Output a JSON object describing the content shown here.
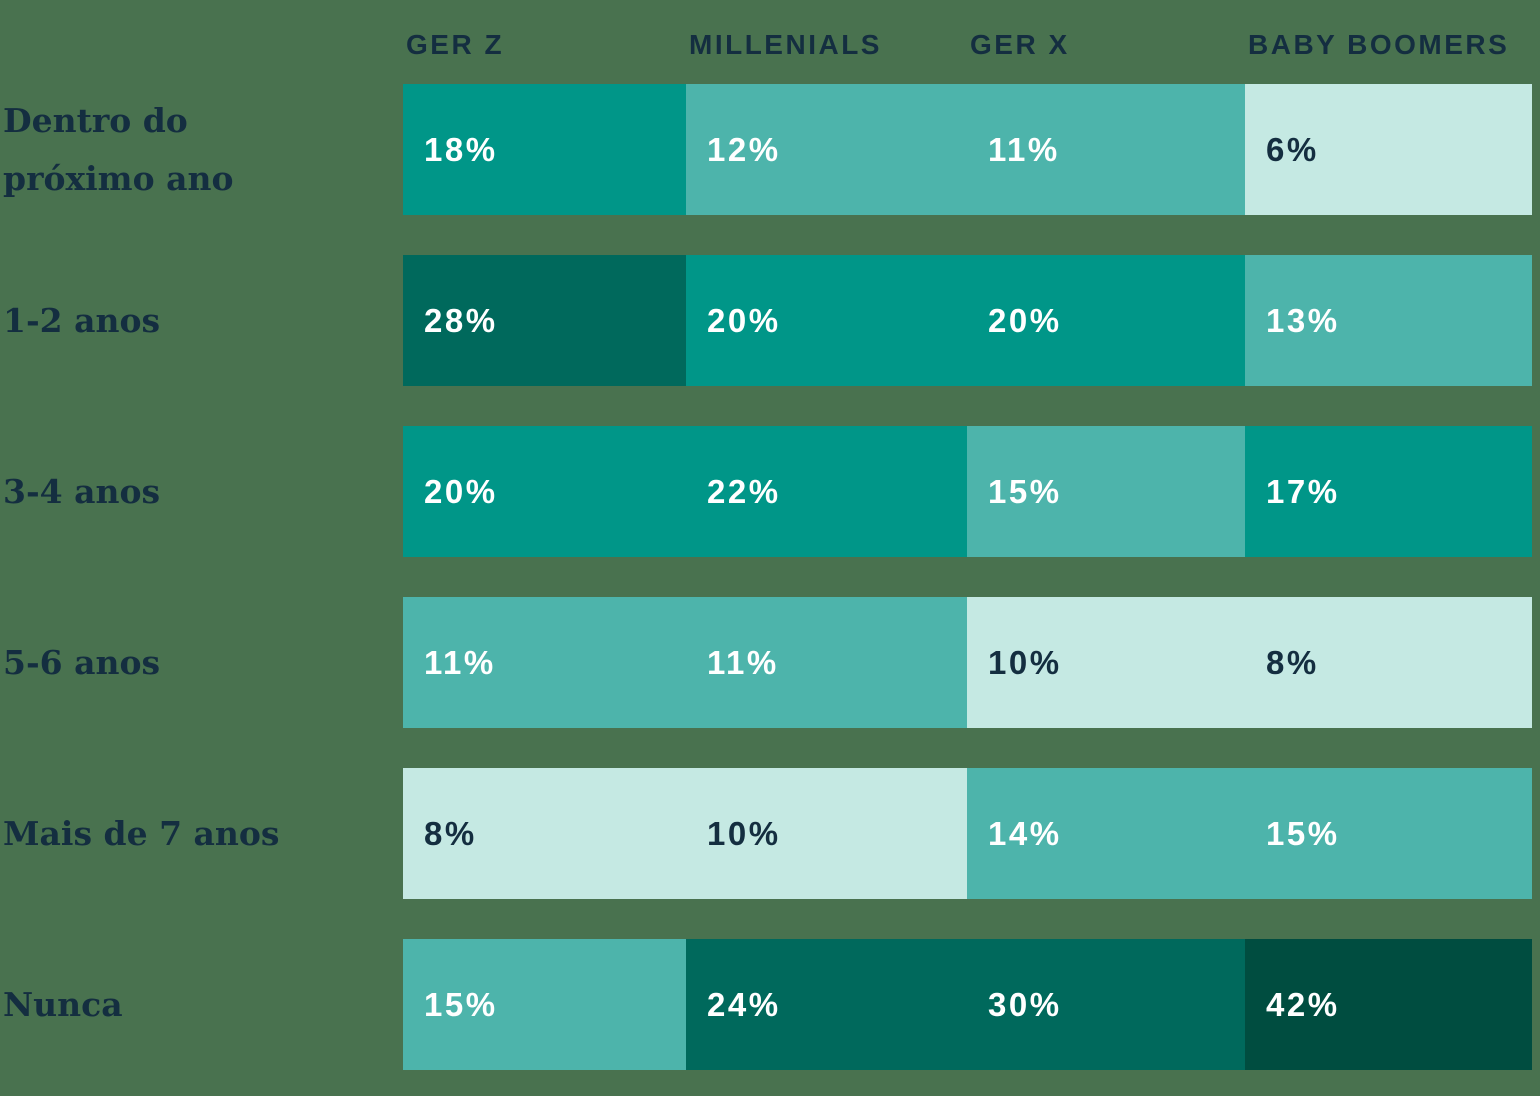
{
  "palette": {
    "background": "#49724F",
    "navy": "#142E40",
    "white": "#FFFFFF",
    "teal_darkest": "#004D40",
    "teal_dark": "#00695C",
    "teal_medium": "#009688",
    "teal_light": "#4DB4AB",
    "teal_mint": "#C5E9E3"
  },
  "columns": [
    "GER Z",
    "MILLENIALS",
    "GER X",
    "BABY BOOMERS"
  ],
  "rows": [
    {
      "label": "Dentro do\npróximo ano",
      "cells": [
        {
          "value": "18%",
          "color": "#009688",
          "text_color": "#FFFFFF"
        },
        {
          "value": "12%",
          "color": "#4DB4AB",
          "text_color": "#FFFFFF"
        },
        {
          "value": "11%",
          "color": "#4DB4AB",
          "text_color": "#FFFFFF"
        },
        {
          "value": "6%",
          "color": "#C5E9E3",
          "text_color": "#142E40"
        }
      ]
    },
    {
      "label": "1-2 anos",
      "cells": [
        {
          "value": "28%",
          "color": "#00695C",
          "text_color": "#FFFFFF"
        },
        {
          "value": "20%",
          "color": "#009688",
          "text_color": "#FFFFFF"
        },
        {
          "value": "20%",
          "color": "#009688",
          "text_color": "#FFFFFF"
        },
        {
          "value": "13%",
          "color": "#4DB4AB",
          "text_color": "#FFFFFF"
        }
      ]
    },
    {
      "label": "3-4 anos",
      "cells": [
        {
          "value": "20%",
          "color": "#009688",
          "text_color": "#FFFFFF"
        },
        {
          "value": "22%",
          "color": "#009688",
          "text_color": "#FFFFFF"
        },
        {
          "value": "15%",
          "color": "#4DB4AB",
          "text_color": "#FFFFFF"
        },
        {
          "value": "17%",
          "color": "#009688",
          "text_color": "#FFFFFF"
        }
      ]
    },
    {
      "label": "5-6 anos",
      "cells": [
        {
          "value": "11%",
          "color": "#4DB4AB",
          "text_color": "#FFFFFF"
        },
        {
          "value": "11%",
          "color": "#4DB4AB",
          "text_color": "#FFFFFF"
        },
        {
          "value": "10%",
          "color": "#C5E9E3",
          "text_color": "#142E40"
        },
        {
          "value": "8%",
          "color": "#C5E9E3",
          "text_color": "#142E40"
        }
      ]
    },
    {
      "label": "Mais de 7 anos",
      "cells": [
        {
          "value": "8%",
          "color": "#C5E9E3",
          "text_color": "#142E40"
        },
        {
          "value": "10%",
          "color": "#C5E9E3",
          "text_color": "#142E40"
        },
        {
          "value": "14%",
          "color": "#4DB4AB",
          "text_color": "#FFFFFF"
        },
        {
          "value": "15%",
          "color": "#4DB4AB",
          "text_color": "#FFFFFF"
        }
      ]
    },
    {
      "label": "Nunca",
      "cells": [
        {
          "value": "15%",
          "color": "#4DB4AB",
          "text_color": "#FFFFFF"
        },
        {
          "value": "24%",
          "color": "#00695C",
          "text_color": "#FFFFFF"
        },
        {
          "value": "30%",
          "color": "#00695C",
          "text_color": "#FFFFFF"
        },
        {
          "value": "42%",
          "color": "#004D40",
          "text_color": "#FFFFFF"
        }
      ]
    }
  ],
  "chart_data": {
    "type": "heatmap",
    "rows": [
      "Dentro do próximo ano",
      "1-2 anos",
      "3-4 anos",
      "5-6 anos",
      "Mais de 7 anos",
      "Nunca"
    ],
    "columns": [
      "Ger Z",
      "Millenials",
      "Ger X",
      "Baby Boomers"
    ],
    "values_percent": [
      [
        18,
        12,
        11,
        6
      ],
      [
        28,
        20,
        20,
        13
      ],
      [
        20,
        22,
        15,
        17
      ],
      [
        11,
        11,
        10,
        8
      ],
      [
        8,
        10,
        14,
        15
      ],
      [
        15,
        24,
        30,
        42
      ]
    ],
    "unit": "%",
    "legend": "none",
    "color_scale": [
      "#C5E9E3",
      "#4DB4AB",
      "#009688",
      "#00695C",
      "#004D40"
    ]
  }
}
